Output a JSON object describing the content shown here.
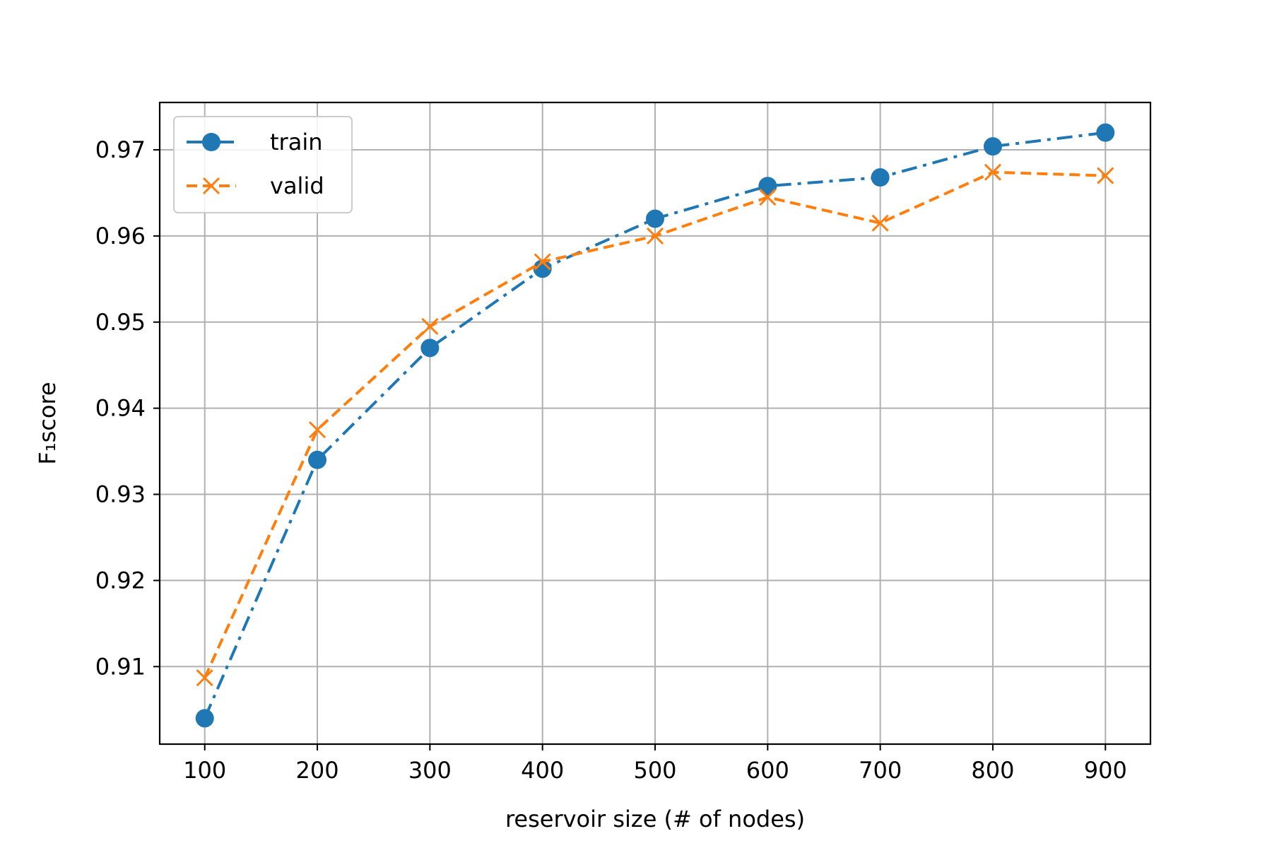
{
  "chart_data": {
    "type": "line",
    "x": [
      100,
      200,
      300,
      400,
      500,
      600,
      700,
      800,
      900
    ],
    "xlabel": "reservoir size (# of nodes)",
    "ylabel": "F₁score",
    "xlim": [
      60,
      940
    ],
    "ylim": [
      0.901,
      0.9755
    ],
    "xticks": [
      100,
      200,
      300,
      400,
      500,
      600,
      700,
      800,
      900
    ],
    "yticks": [
      0.91,
      0.92,
      0.93,
      0.94,
      0.95,
      0.96,
      0.97
    ],
    "ytick_labels": [
      "0.91",
      "0.92",
      "0.93",
      "0.94",
      "0.95",
      "0.96",
      "0.97"
    ],
    "grid": true,
    "legend_position": "top-left",
    "series": [
      {
        "name": "train",
        "values": [
          0.904,
          0.934,
          0.947,
          0.9562,
          0.962,
          0.9658,
          0.9668,
          0.9704,
          0.972
        ],
        "color": "#1f77b4",
        "line_style": "dash-dot",
        "marker": "circle"
      },
      {
        "name": "valid",
        "values": [
          0.9087,
          0.9375,
          0.9495,
          0.957,
          0.96,
          0.9645,
          0.9615,
          0.9674,
          0.967
        ],
        "color": "#ff7f0e",
        "line_style": "dashed",
        "marker": "x"
      }
    ]
  }
}
